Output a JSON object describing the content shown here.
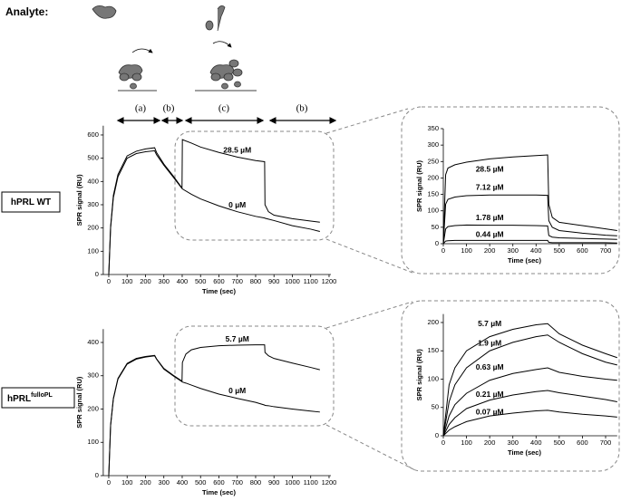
{
  "header": {
    "analyte_label": "Analyte:"
  },
  "phases": [
    "(a)",
    "(b)",
    "(c)",
    "(b)"
  ],
  "constructs": [
    {
      "name": "hPRL WT"
    },
    {
      "name": "hPRL",
      "superscript": "fulloPL"
    }
  ],
  "chart_data": [
    {
      "type": "line",
      "x_label": "Time (sec)",
      "y_label": "SPR signal (RU)",
      "xlim": [
        -30,
        1210
      ],
      "ylim": [
        0,
        640
      ],
      "xticks": [
        0,
        100,
        200,
        300,
        400,
        500,
        600,
        700,
        800,
        900,
        1000,
        1100,
        1200
      ],
      "yticks": [
        0,
        100,
        200,
        300,
        400,
        500,
        600
      ],
      "x": [
        0,
        10,
        25,
        50,
        100,
        150,
        200,
        250,
        260,
        300,
        350,
        399,
        401,
        450,
        500,
        600,
        700,
        800,
        849,
        851,
        870,
        900,
        1000,
        1100,
        1150
      ],
      "series": [
        {
          "name": "28.5 µM",
          "color": "#000000",
          "values": [
            0,
            205,
            340,
            430,
            510,
            530,
            540,
            545,
            525,
            475,
            425,
            372,
            580,
            565,
            548,
            525,
            505,
            490,
            485,
            300,
            270,
            255,
            240,
            230,
            225
          ]
        },
        {
          "name": "0 µM",
          "color": "#000000",
          "values": [
            0,
            200,
            330,
            420,
            500,
            520,
            528,
            532,
            515,
            470,
            420,
            370,
            368,
            345,
            325,
            295,
            270,
            250,
            243,
            242,
            238,
            232,
            210,
            195,
            185
          ]
        }
      ]
    },
    {
      "type": "line",
      "x_label": "Time (sec)",
      "y_label": "SPR signal (RU)",
      "xlim": [
        0,
        750
      ],
      "ylim": [
        0,
        350
      ],
      "xticks": [
        0,
        100,
        200,
        300,
        400,
        500,
        600,
        700
      ],
      "yticks": [
        0,
        50,
        100,
        150,
        200,
        250,
        300,
        350
      ],
      "x": [
        0,
        10,
        20,
        50,
        100,
        200,
        300,
        400,
        450,
        455,
        470,
        500,
        600,
        700,
        750
      ],
      "series": [
        {
          "name": "28.5 µM",
          "color": "#000000",
          "values": [
            0,
            210,
            230,
            240,
            248,
            258,
            264,
            268,
            270,
            120,
            80,
            65,
            55,
            45,
            40
          ]
        },
        {
          "name": "7.12 µM",
          "color": "#000000",
          "values": [
            0,
            120,
            135,
            142,
            146,
            148,
            148,
            148,
            147,
            70,
            50,
            40,
            32,
            26,
            24
          ]
        },
        {
          "name": "1.78 µM",
          "color": "#000000",
          "values": [
            0,
            45,
            52,
            55,
            57,
            56,
            56,
            55,
            54,
            25,
            20,
            18,
            16,
            14,
            13
          ]
        },
        {
          "name": "0.44 µM",
          "color": "#000000",
          "values": [
            0,
            8,
            9,
            10,
            10,
            10,
            10,
            10,
            10,
            4,
            3,
            3,
            3,
            3,
            2
          ]
        }
      ]
    },
    {
      "type": "line",
      "x_label": "Time (sec)",
      "y_label": "SPR signal (RU)",
      "xlim": [
        -30,
        1210
      ],
      "ylim": [
        0,
        440
      ],
      "xticks": [
        0,
        100,
        200,
        300,
        400,
        500,
        600,
        700,
        800,
        900,
        1000,
        1100,
        1200
      ],
      "yticks": [
        0,
        100,
        200,
        300,
        400
      ],
      "x": [
        0,
        10,
        25,
        50,
        100,
        150,
        200,
        250,
        260,
        300,
        350,
        399,
        401,
        420,
        450,
        500,
        600,
        700,
        800,
        849,
        851,
        870,
        900,
        1000,
        1100,
        1150
      ],
      "series": [
        {
          "name": "5.7 µM",
          "color": "#000000",
          "values": [
            0,
            152,
            232,
            292,
            337,
            352,
            358,
            361,
            351,
            322,
            302,
            284,
            340,
            365,
            378,
            385,
            390,
            392,
            393,
            393,
            370,
            360,
            352,
            338,
            325,
            318
          ]
        },
        {
          "name": "0 µM",
          "color": "#000000",
          "values": [
            0,
            150,
            230,
            290,
            335,
            350,
            356,
            360,
            350,
            320,
            300,
            282,
            281,
            278,
            272,
            262,
            245,
            232,
            220,
            212,
            211,
            210,
            207,
            200,
            194,
            191
          ]
        }
      ]
    },
    {
      "type": "line",
      "x_label": "Time (sec)",
      "y_label": "SPR signal (RU)",
      "xlim": [
        0,
        750
      ],
      "ylim": [
        0,
        215
      ],
      "xticks": [
        0,
        100,
        200,
        300,
        400,
        500,
        600,
        700
      ],
      "yticks": [
        0,
        50,
        100,
        150,
        200
      ],
      "x": [
        0,
        25,
        50,
        100,
        200,
        300,
        400,
        450,
        500,
        600,
        700,
        750
      ],
      "series": [
        {
          "name": "5.7 µM",
          "color": "#000000",
          "values": [
            0,
            90,
            120,
            150,
            175,
            188,
            196,
            198,
            180,
            160,
            145,
            138
          ]
        },
        {
          "name": "1.9 µM",
          "color": "#000000",
          "values": [
            0,
            60,
            90,
            120,
            150,
            165,
            175,
            178,
            165,
            145,
            130,
            125
          ]
        },
        {
          "name": "0.63 µM",
          "color": "#000000",
          "values": [
            0,
            35,
            55,
            75,
            98,
            110,
            117,
            120,
            112,
            105,
            100,
            98
          ]
        },
        {
          "name": "0.21 µM",
          "color": "#000000",
          "values": [
            0,
            20,
            32,
            48,
            63,
            72,
            78,
            80,
            76,
            70,
            64,
            60
          ]
        },
        {
          "name": "0.07 µM",
          "color": "#000000",
          "values": [
            0,
            10,
            16,
            25,
            35,
            40,
            44,
            45,
            42,
            38,
            35,
            33
          ]
        }
      ]
    }
  ]
}
